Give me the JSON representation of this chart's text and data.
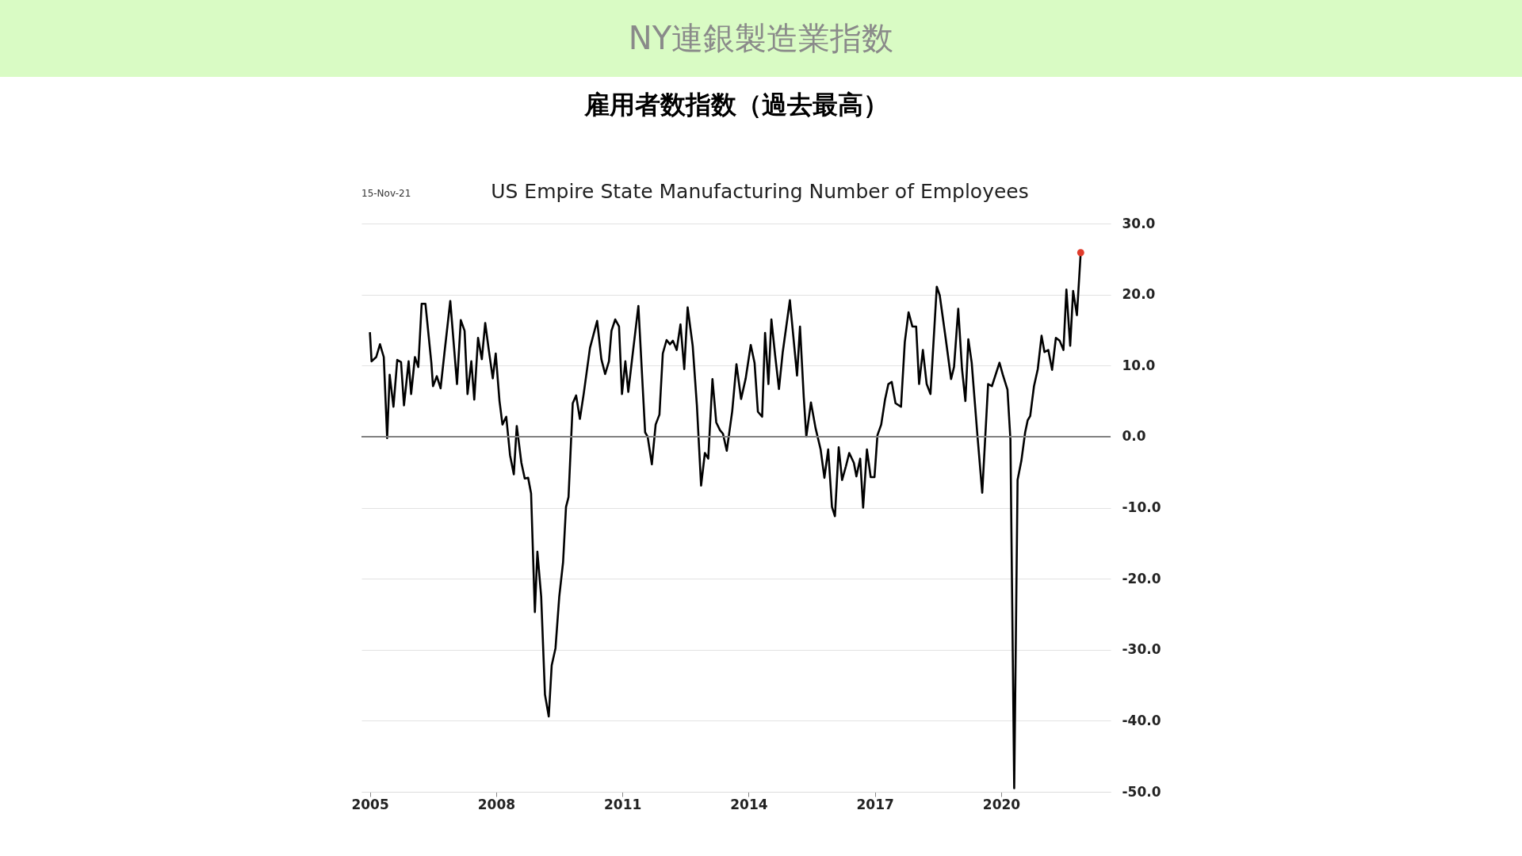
{
  "chart_data": {
    "type": "line",
    "title": "NY連銀製造業指数",
    "subtitle": "雇用者数指数（過去最高）",
    "annotations": [
      "15-Nov-21",
      "US Empire State Manufacturing Number of Employees"
    ],
    "xlim": [
      2004.8,
      2022.6
    ],
    "xticks": [
      2005,
      2008,
      2011,
      2014,
      2017,
      2020
    ],
    "ylim": [
      -50,
      30
    ],
    "yticks": [
      {
        "value": 30,
        "label": "30.0"
      },
      {
        "value": 20,
        "label": "20.0"
      },
      {
        "value": 10,
        "label": "10.0"
      },
      {
        "value": 0,
        "label": "0.0"
      },
      {
        "value": -10,
        "label": "-10.0"
      },
      {
        "value": -20,
        "label": "-20.0"
      },
      {
        "value": -30,
        "label": "-30.0"
      },
      {
        "value": -40,
        "label": "-40.0"
      },
      {
        "value": -50,
        "label": "-50.0"
      }
    ],
    "grid": "y",
    "line_style": "solid",
    "ref_lines": [
      {
        "axis": "y",
        "value": 0,
        "color": "#808080"
      }
    ],
    "series": [
      {
        "color": "#000000",
        "x": [
          2005.0,
          2005.04,
          2005.15,
          2005.24,
          2005.33,
          2005.41,
          2005.47,
          2005.56,
          2005.65,
          2005.74,
          2005.81,
          2005.92,
          2005.98,
          2006.07,
          2006.15,
          2006.23,
          2006.32,
          2006.46,
          2006.5,
          2006.59,
          2006.68,
          2006.77,
          2006.91,
          2007.07,
          2007.16,
          2007.25,
          2007.32,
          2007.41,
          2007.48,
          2007.57,
          2007.66,
          2007.74,
          2007.83,
          2007.92,
          2007.99,
          2008.08,
          2008.15,
          2008.24,
          2008.33,
          2008.42,
          2008.49,
          2008.6,
          2008.68,
          2008.76,
          2008.83,
          2008.92,
          2008.98,
          2009.07,
          2009.16,
          2009.25,
          2009.32,
          2009.41,
          2009.5,
          2009.59,
          2009.66,
          2009.72,
          2009.82,
          2009.9,
          2009.99,
          2010.08,
          2010.23,
          2010.4,
          2010.5,
          2010.59,
          2010.68,
          2010.74,
          2010.83,
          2010.92,
          2010.99,
          2011.07,
          2011.14,
          2011.24,
          2011.38,
          2011.54,
          2011.6,
          2011.7,
          2011.79,
          2011.88,
          2011.96,
          2012.05,
          2012.13,
          2012.2,
          2012.29,
          2012.38,
          2012.47,
          2012.55,
          2012.67,
          2012.77,
          2012.87,
          2012.96,
          2013.04,
          2013.14,
          2013.23,
          2013.32,
          2013.39,
          2013.48,
          2013.61,
          2013.71,
          2013.82,
          2013.93,
          2014.05,
          2014.14,
          2014.22,
          2014.32,
          2014.39,
          2014.47,
          2014.54,
          2014.63,
          2014.72,
          2014.81,
          2014.98,
          2015.15,
          2015.22,
          2015.31,
          2015.37,
          2015.48,
          2015.59,
          2015.71,
          2015.8,
          2015.89,
          2015.98,
          2016.05,
          2016.14,
          2016.22,
          2016.31,
          2016.39,
          2016.5,
          2016.56,
          2016.65,
          2016.72,
          2016.81,
          2016.9,
          2016.99,
          2017.06,
          2017.15,
          2017.24,
          2017.32,
          2017.4,
          2017.49,
          2017.62,
          2017.71,
          2017.8,
          2017.89,
          2017.98,
          2018.05,
          2018.14,
          2018.23,
          2018.32,
          2018.47,
          2018.54,
          2018.68,
          2018.81,
          2018.88,
          2018.98,
          2019.07,
          2019.15,
          2019.22,
          2019.3,
          2019.43,
          2019.55,
          2019.69,
          2019.78,
          2019.96,
          2020.04,
          2020.15,
          2020.22,
          2020.31,
          2020.39,
          2020.48,
          2020.57,
          2020.63,
          2020.69,
          2020.78,
          2020.87,
          2020.96,
          2021.03,
          2021.12,
          2021.21,
          2021.3,
          2021.39,
          2021.48,
          2021.55,
          2021.64,
          2021.71,
          2021.8,
          2021.89
        ],
        "values": [
          14.7,
          10.6,
          11.2,
          13,
          11.2,
          -0.2,
          8.7,
          4.2,
          10.8,
          10.5,
          4.4,
          10.6,
          6,
          11.2,
          9.8,
          18.7,
          18.7,
          10.4,
          7.1,
          8.5,
          6.8,
          11.7,
          19.1,
          7.4,
          16.4,
          14.9,
          6,
          10.6,
          5.2,
          13.9,
          10.9,
          16,
          12,
          8.2,
          11.7,
          5,
          1.7,
          2.8,
          -2.6,
          -5.3,
          1.5,
          -3.7,
          -5.9,
          -5.8,
          -8,
          -24.7,
          -16.2,
          -22.5,
          -36.3,
          -39.4,
          -32.2,
          -29.8,
          -22.5,
          -17.7,
          -9.9,
          -8.5,
          4.7,
          5.8,
          2.5,
          6,
          12.5,
          16.3,
          10.9,
          8.8,
          10.6,
          14.9,
          16.5,
          15.5,
          6,
          10.6,
          6.3,
          11.4,
          18.4,
          0.6,
          0,
          -3.9,
          1.7,
          3.1,
          11.7,
          13.6,
          13,
          13.5,
          12.2,
          15.8,
          9.5,
          18.2,
          12.8,
          4.4,
          -6.9,
          -2.3,
          -3.1,
          8.1,
          2,
          0.9,
          0.4,
          -2,
          3.6,
          10.2,
          5.3,
          8.2,
          12.9,
          10.4,
          3.5,
          2.8,
          14.6,
          7.4,
          16.5,
          11.4,
          6.7,
          11.9,
          19.2,
          8.6,
          15.5,
          5.5,
          0,
          4.8,
          1.2,
          -1.8,
          -5.8,
          -1.8,
          -9.9,
          -11.2,
          -1.5,
          -6.1,
          -4.2,
          -2.3,
          -3.7,
          -5.6,
          -3.1,
          -10,
          -1.8,
          -5.7,
          -5.7,
          0.2,
          1.7,
          5.2,
          7.4,
          7.7,
          4.7,
          4.2,
          13.3,
          17.5,
          15.5,
          15.5,
          7.4,
          12.2,
          7.4,
          6,
          21.1,
          19.9,
          13.9,
          8.1,
          9.8,
          18,
          9.5,
          5,
          13.7,
          10.4,
          0.6,
          -7.9,
          7.4,
          7.1,
          10.4,
          8.7,
          6.6,
          -0.4,
          -49.5,
          -6.1,
          -3.4,
          0.6,
          2.3,
          2.9,
          7.1,
          9.5,
          14.2,
          11.9,
          12.2,
          9.4,
          13.9,
          13.5,
          12.2,
          20.7,
          12.8,
          20.5,
          17.1,
          25.9
        ]
      },
      {
        "type": "scatter",
        "color": "#e03c2c",
        "marker": "circle",
        "x": [
          2021.89
        ],
        "values": [
          25.9
        ]
      }
    ]
  }
}
